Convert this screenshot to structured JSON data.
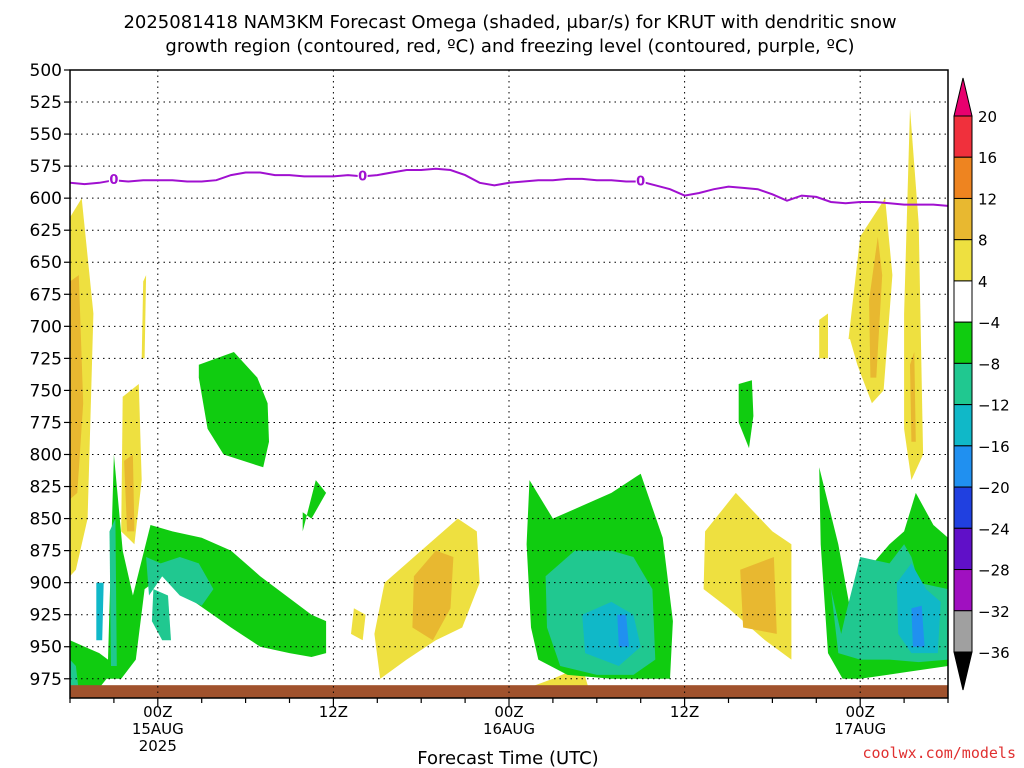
{
  "chart_data": {
    "type": "heatmap",
    "title_line1": "2025081418 NAM3KM Forecast Omega (shaded, μbar/s) for KRUT with dendritic snow",
    "title_line2": "growth region (contoured, red, ºC) and freezing level (contoured, purple, ºC)",
    "xlabel": "Forecast Time (UTC)",
    "ylabel": "",
    "credit": "coolwx.com/models",
    "y_axis": {
      "scale": "pressure-linear",
      "range_hpa": [
        500,
        990
      ],
      "ticks": [
        500,
        525,
        550,
        575,
        600,
        625,
        650,
        675,
        700,
        725,
        750,
        775,
        800,
        825,
        850,
        875,
        900,
        925,
        950,
        975
      ]
    },
    "x_axis": {
      "range_hours": [
        -6,
        54
      ],
      "grid_hours": [
        0,
        12,
        24,
        36,
        48
      ],
      "ticks": [
        {
          "hour": 0,
          "lines": [
            "00Z",
            "15AUG",
            "2025"
          ]
        },
        {
          "hour": 12,
          "lines": [
            "12Z"
          ]
        },
        {
          "hour": 24,
          "lines": [
            "00Z",
            "16AUG"
          ]
        },
        {
          "hour": 36,
          "lines": [
            "12Z"
          ]
        },
        {
          "hour": 48,
          "lines": [
            "00Z",
            "17AUG"
          ]
        }
      ]
    },
    "colorbar": {
      "labels": [
        "20",
        "16",
        "12",
        "8",
        "4",
        "−4",
        "−8",
        "−12",
        "−16",
        "−20",
        "−24",
        "−28",
        "−32",
        "−36"
      ],
      "colors_top_to_bottom": [
        "#e8006e",
        "#f0303c",
        "#ee8420",
        "#e8b830",
        "#eee040",
        "#ffffff",
        "#10cc10",
        "#20c890",
        "#10b8c8",
        "#2090f0",
        "#2040e0",
        "#6010c8",
        "#a010c0",
        "#a0a0a0",
        "#000000"
      ]
    },
    "freezing_level": {
      "label": "0",
      "color": "#a010d0",
      "x_hours": [
        -6,
        -5,
        -4,
        -3,
        -2,
        -1,
        0,
        1,
        2,
        3,
        4,
        5,
        6,
        7,
        8,
        9,
        10,
        11,
        12,
        13,
        14,
        15,
        16,
        17,
        18,
        19,
        20,
        21,
        22,
        23,
        24,
        25,
        26,
        27,
        28,
        29,
        30,
        31,
        32,
        33,
        34,
        35,
        36,
        37,
        38,
        39,
        40,
        41,
        42,
        43,
        44,
        45,
        46,
        47,
        48,
        49,
        50,
        51,
        52,
        53,
        54
      ],
      "p_hpa": [
        588,
        589,
        588,
        586,
        587,
        586,
        586,
        586,
        587,
        587,
        586,
        582,
        580,
        580,
        582,
        582,
        583,
        583,
        583,
        582,
        583,
        582,
        580,
        578,
        578,
        577,
        578,
        582,
        588,
        590,
        588,
        587,
        586,
        586,
        585,
        585,
        586,
        586,
        587,
        587,
        590,
        593,
        598,
        596,
        593,
        591,
        592,
        593,
        597,
        602,
        598,
        599,
        603,
        604,
        603,
        603,
        604,
        605,
        605,
        605,
        606
      ],
      "label_hours": [
        -3,
        14,
        33
      ]
    },
    "omega_regions": [
      {
        "value": 6,
        "color": "#eee040",
        "x_hours": [
          -6,
          -5.2,
          -4.4,
          -4.8,
          -5.6,
          -6
        ],
        "p_hpa": [
          615,
          600,
          690,
          850,
          890,
          895
        ]
      },
      {
        "value": 10,
        "color": "#e8b830",
        "x_hours": [
          -6,
          -5.4,
          -5.1,
          -5.5,
          -6
        ],
        "p_hpa": [
          665,
          660,
          760,
          830,
          835
        ]
      },
      {
        "value": 6,
        "color": "#eee040",
        "x_hours": [
          -2.4,
          -1.3,
          -1.1,
          -1.6,
          -2.5
        ],
        "p_hpa": [
          755,
          745,
          820,
          870,
          860
        ]
      },
      {
        "value": 10,
        "color": "#e8b830",
        "x_hours": [
          -2.3,
          -1.7,
          -1.6,
          -2.1
        ],
        "p_hpa": [
          805,
          800,
          860,
          860
        ]
      },
      {
        "value": 6,
        "color": "#eee040",
        "x_hours": [
          -1.0,
          -0.8,
          -0.9,
          -1.1
        ],
        "p_hpa": [
          665,
          660,
          725,
          725
        ]
      },
      {
        "value": 6,
        "color": "#eee040",
        "x_hours": [
          13.4,
          14.2,
          14.0,
          13.2
        ],
        "p_hpa": [
          920,
          925,
          945,
          940
        ]
      },
      {
        "value": 6,
        "color": "#eee040",
        "x_hours": [
          15.5,
          18.0,
          20.5,
          21.8,
          22.0,
          20.8,
          19.0,
          17.0,
          15.2,
          14.8
        ],
        "p_hpa": [
          900,
          875,
          850,
          860,
          900,
          935,
          945,
          960,
          975,
          940
        ]
      },
      {
        "value": 10,
        "color": "#e8b830",
        "x_hours": [
          17.5,
          19.0,
          20.2,
          20.0,
          18.8,
          17.4
        ],
        "p_hpa": [
          895,
          875,
          880,
          920,
          945,
          935
        ]
      },
      {
        "value": 6,
        "color": "#eee040",
        "x_hours": [
          24.6,
          27.0,
          29.0,
          29.5,
          24.5
        ],
        "p_hpa": [
          985,
          975,
          965,
          985,
          988
        ]
      },
      {
        "value": 6,
        "color": "#eee040",
        "x_hours": [
          37.4,
          39.5,
          42.0,
          43.3,
          43.3,
          41.5,
          39.0,
          37.3
        ],
        "p_hpa": [
          860,
          830,
          860,
          870,
          960,
          945,
          920,
          905
        ]
      },
      {
        "value": 10,
        "color": "#e8b830",
        "x_hours": [
          39.8,
          42.1,
          42.3,
          40.0
        ],
        "p_hpa": [
          890,
          880,
          940,
          935
        ]
      },
      {
        "value": 6,
        "color": "#eee040",
        "x_hours": [
          47.2,
          48.0,
          49.7,
          50.2,
          49.6,
          48.8,
          47.8,
          47.3
        ],
        "p_hpa": [
          710,
          630,
          600,
          660,
          750,
          760,
          730,
          710
        ]
      },
      {
        "value": 10,
        "color": "#e8b830",
        "x_hours": [
          48.6,
          49.2,
          49.5,
          49.1,
          48.7
        ],
        "p_hpa": [
          680,
          630,
          660,
          740,
          740
        ]
      },
      {
        "value": 6,
        "color": "#eee040",
        "x_hours": [
          51.0,
          51.4,
          52.0,
          52.3,
          51.5,
          51.0
        ],
        "p_hpa": [
          690,
          530,
          620,
          800,
          820,
          780
        ]
      },
      {
        "value": 10,
        "color": "#e8b830",
        "x_hours": [
          51.4,
          51.7,
          51.8,
          51.5
        ],
        "p_hpa": [
          730,
          720,
          790,
          790
        ]
      },
      {
        "value": 6,
        "color": "#eee040",
        "x_hours": [
          45.2,
          45.8,
          45.8,
          45.2
        ],
        "p_hpa": [
          695,
          690,
          725,
          725
        ]
      },
      {
        "value": -6,
        "color": "#10cc10",
        "x_hours": [
          2.8,
          5.2,
          6.8,
          7.5,
          7.6,
          7.2,
          4.5,
          3.4,
          2.8
        ],
        "p_hpa": [
          730,
          720,
          740,
          760,
          790,
          810,
          800,
          780,
          740
        ]
      },
      {
        "value": -6,
        "color": "#10cc10",
        "x_hours": [
          9.9,
          10.8,
          11.5,
          10.5,
          9.9
        ],
        "p_hpa": [
          860,
          820,
          830,
          850,
          845
        ]
      },
      {
        "value": -6,
        "color": "#10cc10",
        "x_hours": [
          -6,
          -5.0,
          -4.0,
          -3.4,
          -3.0,
          -2.4,
          -1.7,
          -0.5,
          1.0,
          3.0,
          5.0,
          7.0,
          10.5,
          11.5,
          11.5,
          10.5,
          9.0,
          7.0,
          5.0,
          2.5,
          0.3,
          -0.9,
          -1.5,
          -2.5,
          -3.0,
          -3.5,
          -4.2,
          -6
        ],
        "p_hpa": [
          945,
          950,
          955,
          960,
          800,
          875,
          910,
          855,
          860,
          865,
          875,
          895,
          925,
          930,
          955,
          958,
          955,
          950,
          935,
          915,
          895,
          905,
          960,
          975,
          975,
          975,
          985,
          985
        ]
      },
      {
        "value": -10,
        "color": "#20c890",
        "x_hours": [
          -0.8,
          0.2,
          1.5,
          2.8,
          3.8,
          3.0,
          1.5,
          0.3,
          -0.6
        ],
        "p_hpa": [
          880,
          885,
          880,
          885,
          905,
          918,
          910,
          895,
          910
        ]
      },
      {
        "value": -10,
        "color": "#20c890",
        "x_hours": [
          -3.3,
          -2.9,
          -2.8,
          -3.2
        ],
        "p_hpa": [
          860,
          850,
          965,
          965
        ]
      },
      {
        "value": -10,
        "color": "#20c890",
        "x_hours": [
          -0.3,
          0.7,
          0.9,
          0.3,
          -0.4
        ],
        "p_hpa": [
          905,
          910,
          945,
          945,
          930
        ]
      },
      {
        "value": -10,
        "color": "#20c890",
        "x_hours": [
          -6,
          -5.6,
          -5.4,
          -6
        ],
        "p_hpa": [
          960,
          965,
          985,
          985
        ]
      },
      {
        "value": -6,
        "color": "#10cc10",
        "x_hours": [
          25.4,
          27.0,
          29.0,
          31.0,
          33.0,
          34.5,
          35.2,
          35.0,
          33.5,
          31.0,
          28.0,
          26.0,
          25.5,
          25.2
        ],
        "p_hpa": [
          820,
          850,
          840,
          830,
          815,
          865,
          930,
          975,
          975,
          975,
          972,
          960,
          935,
          870
        ]
      },
      {
        "value": -10,
        "color": "#20c890",
        "x_hours": [
          26.5,
          28.5,
          31.0,
          32.5,
          33.8,
          34.0,
          32.5,
          30.0,
          27.5,
          26.6
        ],
        "p_hpa": [
          895,
          875,
          875,
          880,
          905,
          960,
          972,
          972,
          965,
          935
        ]
      },
      {
        "value": -14,
        "color": "#10b8c8",
        "x_hours": [
          29.0,
          31.0,
          32.5,
          33.0,
          31.5,
          29.2
        ],
        "p_hpa": [
          925,
          915,
          925,
          950,
          965,
          955
        ]
      },
      {
        "value": -18,
        "color": "#2090f0",
        "x_hours": [
          31.4,
          32.0,
          32.2,
          31.5
        ],
        "p_hpa": [
          925,
          925,
          950,
          950
        ]
      },
      {
        "value": -6,
        "color": "#10cc10",
        "x_hours": [
          39.7,
          40.6,
          40.7,
          40.4,
          39.7
        ],
        "p_hpa": [
          745,
          742,
          770,
          795,
          775
        ]
      },
      {
        "value": -6,
        "color": "#10cc10",
        "x_hours": [
          45.2,
          46.5,
          47.3,
          48.5,
          50.0,
          51.0,
          51.8,
          53.0,
          54.0,
          54.0,
          51.0,
          48.0,
          46.8,
          45.8,
          45.3
        ],
        "p_hpa": [
          810,
          870,
          920,
          890,
          870,
          860,
          830,
          855,
          865,
          965,
          970,
          975,
          975,
          955,
          870
        ]
      },
      {
        "value": -10,
        "color": "#20c890",
        "x_hours": [
          46.0,
          46.7,
          47.0,
          48.0,
          50.0,
          51.0,
          51.5,
          52.0,
          54.0,
          54.0,
          52.0,
          50.0,
          48.0,
          46.5
        ],
        "p_hpa": [
          905,
          940,
          925,
          880,
          885,
          870,
          880,
          900,
          905,
          960,
          962,
          960,
          960,
          955
        ]
      },
      {
        "value": -14,
        "color": "#10b8c8",
        "x_hours": [
          50.5,
          51.5,
          52.5,
          53.5,
          53.3,
          51.5,
          50.6
        ],
        "p_hpa": [
          900,
          885,
          905,
          915,
          955,
          955,
          940
        ]
      },
      {
        "value": -18,
        "color": "#2090f0",
        "x_hours": [
          51.5,
          52.2,
          52.4,
          51.6
        ],
        "p_hpa": [
          920,
          918,
          950,
          950
        ]
      },
      {
        "value": -14,
        "color": "#10b8c8",
        "x_hours": [
          -4.2,
          -3.7,
          -3.8,
          -4.2
        ],
        "p_hpa": [
          900,
          900,
          945,
          945
        ]
      }
    ],
    "ground": {
      "color": "#a0522d",
      "top_hpa": 980
    }
  }
}
